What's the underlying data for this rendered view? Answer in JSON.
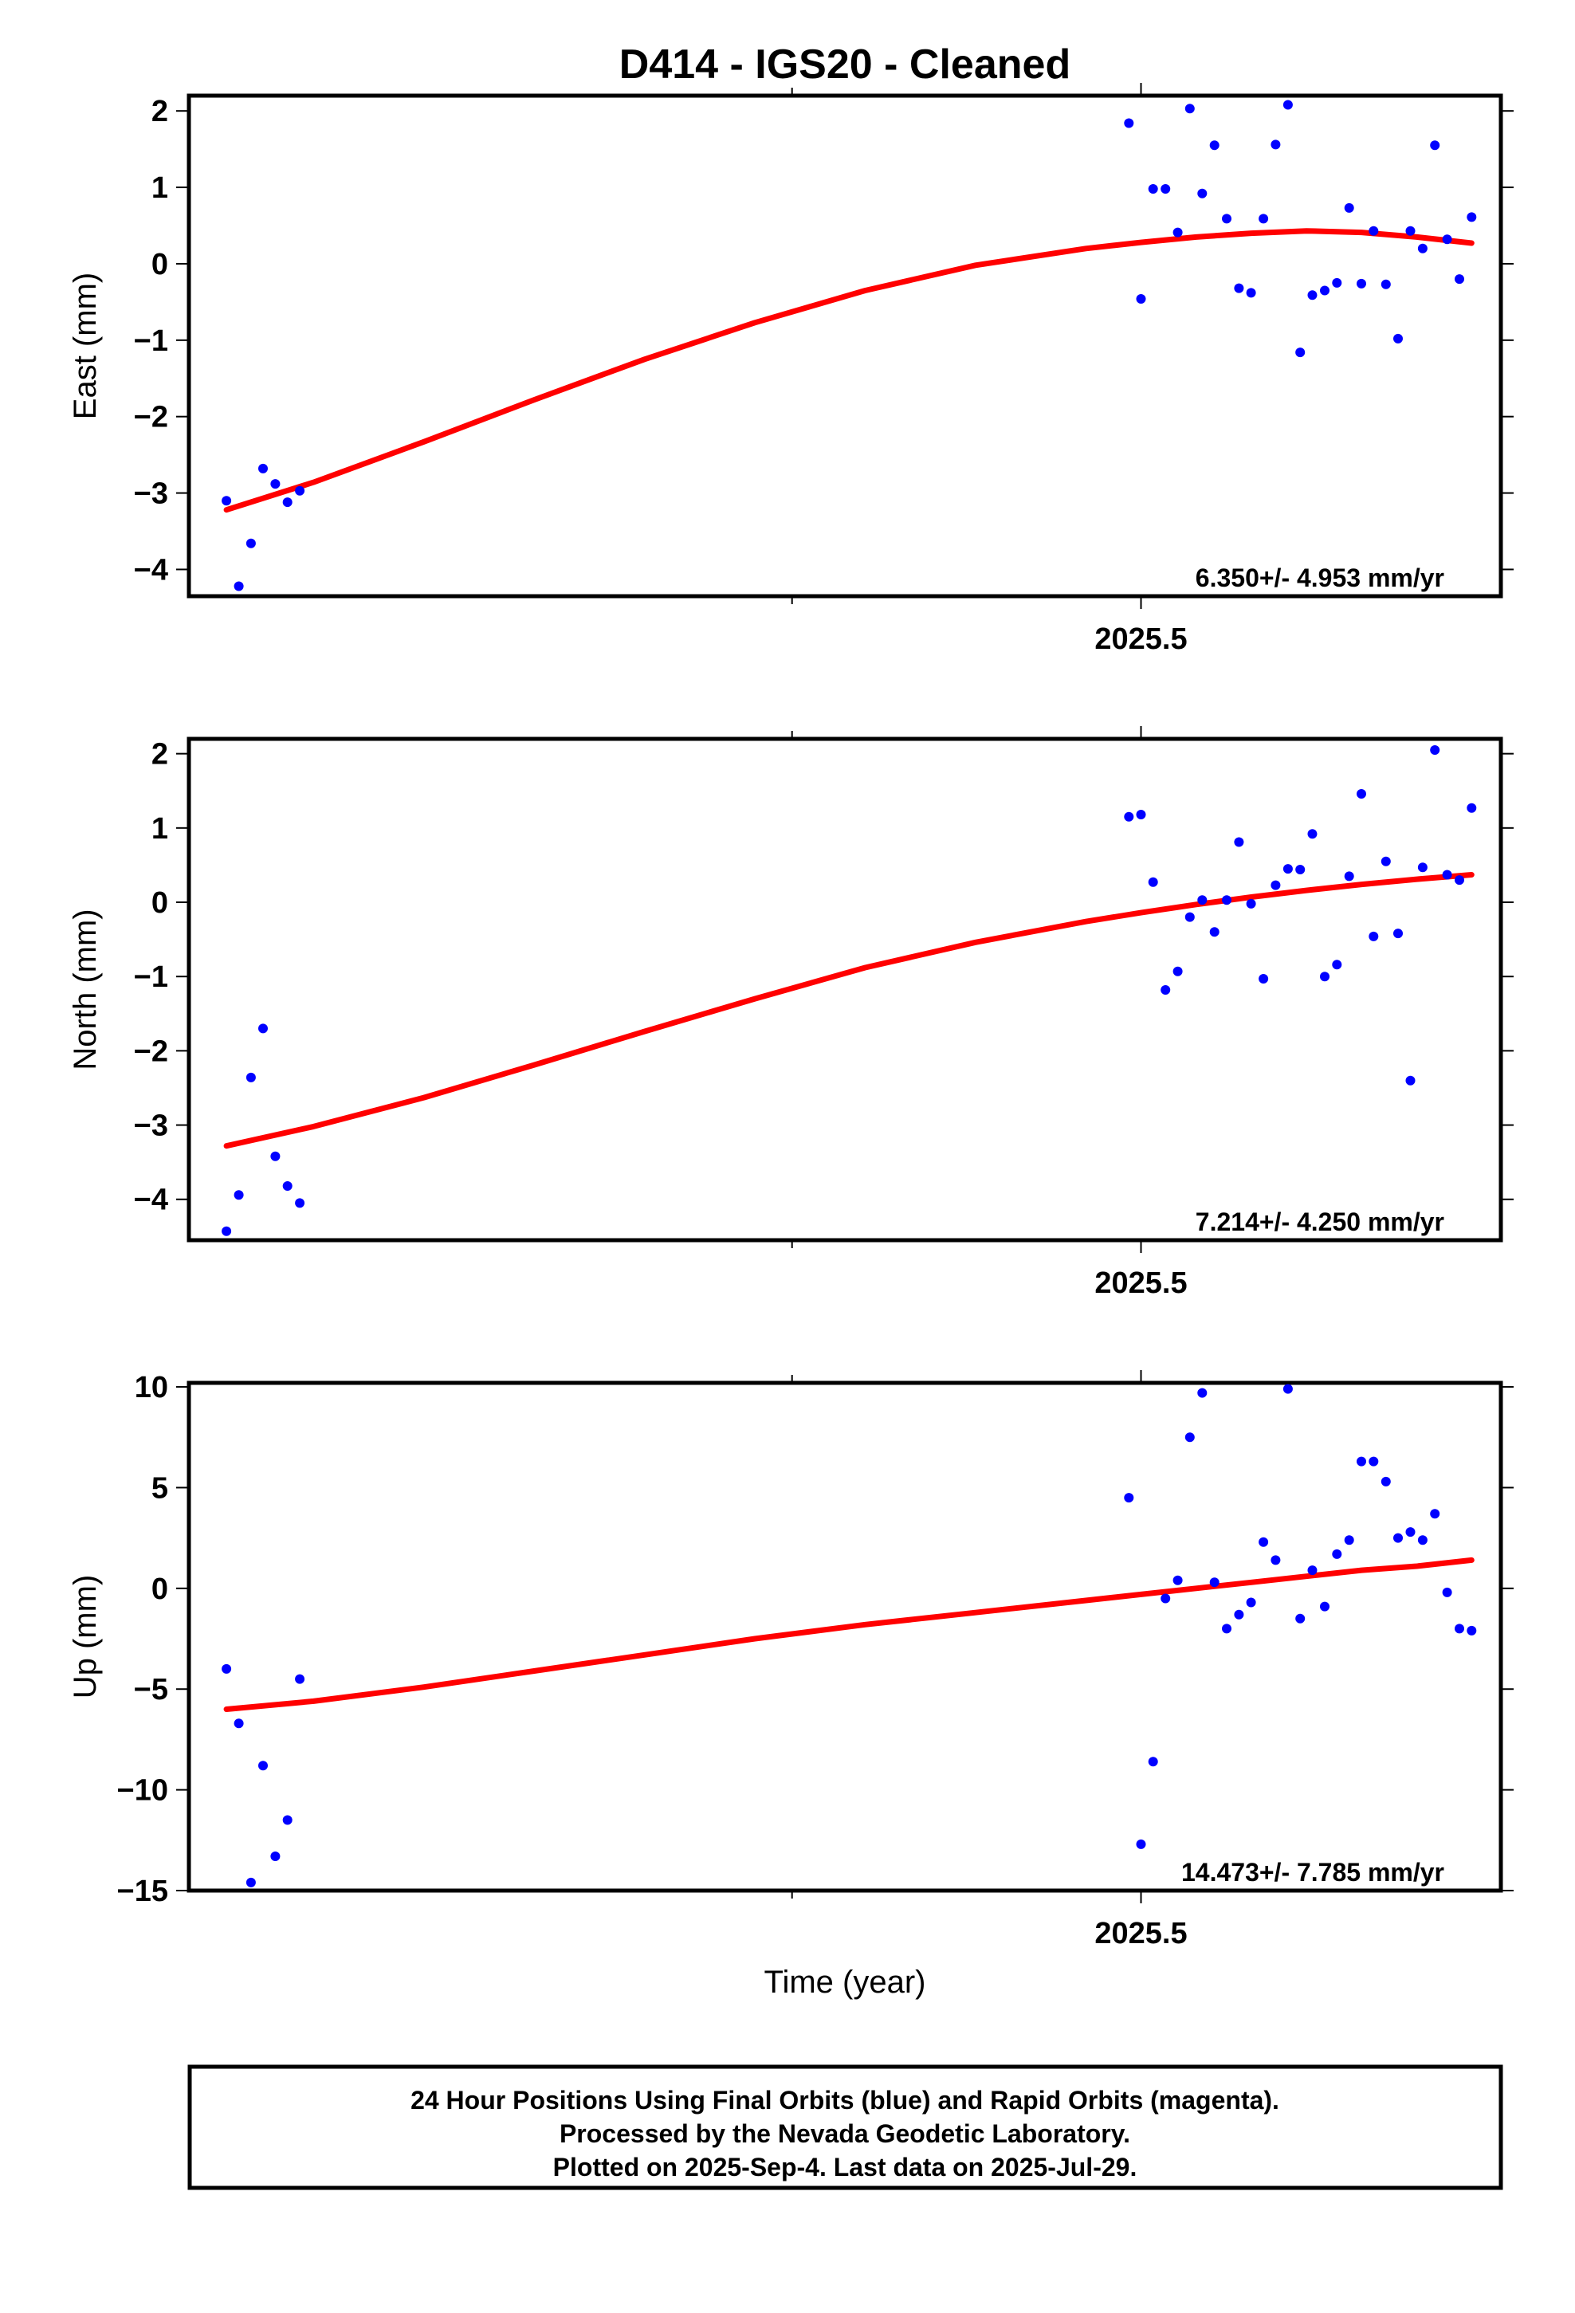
{
  "title": "D414  - IGS20 - Cleaned",
  "colors": {
    "final_orbits": "#0000ff",
    "fit_line": "#ff0000",
    "frame": "#000000"
  },
  "chart_data": [
    {
      "type": "scatter",
      "ylabel": "East (mm)",
      "x_tick_labels": [
        "2025.5"
      ],
      "x_tick_values": [
        2025.5
      ],
      "ylim": [
        -4.35,
        2.2
      ],
      "y_ticks": [
        2,
        1,
        0,
        -1,
        -2,
        -3,
        -4
      ],
      "rate_label": "6.350+/- 4.953 mm/yr",
      "series": [
        {
          "values": [
            [
              2024.671,
              -3.1
            ],
            [
              2024.6822,
              -4.22
            ],
            [
              2024.6933,
              -3.66
            ],
            [
              2024.7042,
              -2.68
            ],
            [
              2024.7153,
              -2.88
            ],
            [
              2024.7264,
              -3.12
            ],
            [
              2024.7375,
              -2.97
            ],
            [
              2025.489,
              1.84
            ],
            [
              2025.5,
              -0.46
            ],
            [
              2025.511,
              0.98
            ],
            [
              2025.5222,
              0.98
            ],
            [
              2025.5333,
              0.41
            ],
            [
              2025.5443,
              2.03
            ],
            [
              2025.5555,
              0.92
            ],
            [
              2025.5666,
              1.55
            ],
            [
              2025.5777,
              0.59
            ],
            [
              2025.5888,
              -0.32
            ],
            [
              2025.5998,
              -0.38
            ],
            [
              2025.611,
              0.59
            ],
            [
              2025.622,
              1.56
            ],
            [
              2025.6332,
              2.08
            ],
            [
              2025.6443,
              -1.16
            ],
            [
              2025.6553,
              -0.41
            ],
            [
              2025.6665,
              -0.35
            ],
            [
              2025.6776,
              -0.25
            ],
            [
              2025.6887,
              0.73
            ],
            [
              2025.6998,
              -0.26
            ],
            [
              2025.7108,
              0.43
            ],
            [
              2025.722,
              -0.27
            ],
            [
              2025.733,
              -0.98
            ],
            [
              2025.7442,
              0.43
            ],
            [
              2025.7553,
              0.2
            ],
            [
              2025.7664,
              1.55
            ],
            [
              2025.7775,
              0.32
            ],
            [
              2025.7886,
              -0.2
            ],
            [
              2025.7997,
              0.61
            ]
          ]
        },
        {
          "values": [
            [
              2024.671,
              -3.22
            ],
            [
              2024.75,
              -2.86
            ],
            [
              2024.85,
              -2.33
            ],
            [
              2024.95,
              -1.78
            ],
            [
              2025.05,
              -1.25
            ],
            [
              2025.15,
              -0.77
            ],
            [
              2025.25,
              -0.35
            ],
            [
              2025.35,
              -0.02
            ],
            [
              2025.45,
              0.2
            ],
            [
              2025.5,
              0.28
            ],
            [
              2025.55,
              0.35
            ],
            [
              2025.6,
              0.4
            ],
            [
              2025.65,
              0.43
            ],
            [
              2025.7,
              0.41
            ],
            [
              2025.75,
              0.35
            ],
            [
              2025.7997,
              0.27
            ]
          ]
        }
      ]
    },
    {
      "type": "scatter",
      "ylabel": "North (mm)",
      "x_tick_labels": [
        "2025.5"
      ],
      "x_tick_values": [
        2025.5
      ],
      "ylim": [
        -4.55,
        2.2
      ],
      "y_ticks": [
        2,
        1,
        0,
        -1,
        -2,
        -3,
        -4
      ],
      "rate_label": "7.214+/- 4.250 mm/yr",
      "series": [
        {
          "values": [
            [
              2024.671,
              -4.43
            ],
            [
              2024.6822,
              -3.94
            ],
            [
              2024.6933,
              -2.36
            ],
            [
              2024.7042,
              -1.7
            ],
            [
              2024.7153,
              -3.42
            ],
            [
              2024.7264,
              -3.82
            ],
            [
              2024.7375,
              -4.05
            ],
            [
              2025.489,
              1.15
            ],
            [
              2025.5,
              1.18
            ],
            [
              2025.511,
              0.27
            ],
            [
              2025.5222,
              -1.18
            ],
            [
              2025.5333,
              -0.93
            ],
            [
              2025.5443,
              -0.2
            ],
            [
              2025.5555,
              0.03
            ],
            [
              2025.5666,
              -0.4
            ],
            [
              2025.5777,
              0.03
            ],
            [
              2025.5888,
              0.81
            ],
            [
              2025.5998,
              -0.02
            ],
            [
              2025.611,
              -1.03
            ],
            [
              2025.622,
              0.23
            ],
            [
              2025.6332,
              0.45
            ],
            [
              2025.6443,
              0.44
            ],
            [
              2025.6553,
              0.92
            ],
            [
              2025.6665,
              -1.0
            ],
            [
              2025.6776,
              -0.84
            ],
            [
              2025.6887,
              0.35
            ],
            [
              2025.6998,
              1.46
            ],
            [
              2025.7108,
              -0.46
            ],
            [
              2025.722,
              0.55
            ],
            [
              2025.733,
              -0.42
            ],
            [
              2025.7442,
              -2.4
            ],
            [
              2025.7553,
              0.47
            ],
            [
              2025.7664,
              2.05
            ],
            [
              2025.7775,
              0.37
            ],
            [
              2025.7886,
              0.3
            ],
            [
              2025.7997,
              1.27
            ]
          ]
        },
        {
          "values": [
            [
              2024.671,
              -3.28
            ],
            [
              2024.75,
              -3.02
            ],
            [
              2024.85,
              -2.63
            ],
            [
              2024.95,
              -2.19
            ],
            [
              2025.05,
              -1.74
            ],
            [
              2025.15,
              -1.3
            ],
            [
              2025.25,
              -0.88
            ],
            [
              2025.35,
              -0.54
            ],
            [
              2025.45,
              -0.26
            ],
            [
              2025.5,
              -0.14
            ],
            [
              2025.55,
              -0.03
            ],
            [
              2025.6,
              0.07
            ],
            [
              2025.65,
              0.16
            ],
            [
              2025.7,
              0.24
            ],
            [
              2025.75,
              0.31
            ],
            [
              2025.7997,
              0.37
            ]
          ]
        }
      ]
    },
    {
      "type": "scatter",
      "ylabel": "Up (mm)",
      "xlabel": "Time (year)",
      "x_tick_labels": [
        "2025.5"
      ],
      "x_tick_values": [
        2025.5
      ],
      "ylim": [
        -15,
        10.2
      ],
      "y_ticks": [
        10,
        5,
        0,
        -5,
        -10,
        -15
      ],
      "rate_label": "14.473+/- 7.785 mm/yr",
      "series": [
        {
          "values": [
            [
              2024.671,
              -4.0
            ],
            [
              2024.6822,
              -6.7
            ],
            [
              2024.6933,
              -14.6
            ],
            [
              2024.7042,
              -8.8
            ],
            [
              2024.7153,
              -13.3
            ],
            [
              2024.7264,
              -11.5
            ],
            [
              2024.7375,
              -4.5
            ],
            [
              2025.489,
              4.5
            ],
            [
              2025.5,
              -12.7
            ],
            [
              2025.511,
              -8.6
            ],
            [
              2025.5222,
              -0.5
            ],
            [
              2025.5333,
              0.4
            ],
            [
              2025.5443,
              7.5
            ],
            [
              2025.5555,
              9.7
            ],
            [
              2025.5666,
              0.3
            ],
            [
              2025.5777,
              -2.0
            ],
            [
              2025.5888,
              -1.3
            ],
            [
              2025.5998,
              -0.7
            ],
            [
              2025.611,
              2.3
            ],
            [
              2025.622,
              1.4
            ],
            [
              2025.6332,
              9.9
            ],
            [
              2025.6443,
              -1.5
            ],
            [
              2025.6553,
              0.9
            ],
            [
              2025.6665,
              -0.9
            ],
            [
              2025.6776,
              1.7
            ],
            [
              2025.6887,
              2.4
            ],
            [
              2025.6998,
              6.3
            ],
            [
              2025.7108,
              6.3
            ],
            [
              2025.722,
              5.3
            ],
            [
              2025.733,
              2.5
            ],
            [
              2025.7442,
              2.8
            ],
            [
              2025.7553,
              2.4
            ],
            [
              2025.7664,
              3.7
            ],
            [
              2025.7775,
              -0.2
            ],
            [
              2025.7886,
              -2.0
            ],
            [
              2025.7997,
              -2.1
            ]
          ]
        },
        {
          "values": [
            [
              2024.671,
              -6.0
            ],
            [
              2024.75,
              -5.6
            ],
            [
              2024.85,
              -4.9
            ],
            [
              2024.95,
              -4.1
            ],
            [
              2025.05,
              -3.3
            ],
            [
              2025.15,
              -2.5
            ],
            [
              2025.25,
              -1.8
            ],
            [
              2025.35,
              -1.2
            ],
            [
              2025.45,
              -0.6
            ],
            [
              2025.5,
              -0.3
            ],
            [
              2025.55,
              0.0
            ],
            [
              2025.6,
              0.3
            ],
            [
              2025.65,
              0.6
            ],
            [
              2025.7,
              0.9
            ],
            [
              2025.75,
              1.1
            ],
            [
              2025.7997,
              1.4
            ]
          ]
        }
      ]
    }
  ],
  "footer": {
    "line1": "24 Hour Positions Using Final Orbits (blue) and Rapid Orbits (magenta).",
    "line2": "Processed by the Nevada Geodetic Laboratory.",
    "line3": "Plotted on 2025-Sep-4. Last data on 2025-Jul-29."
  }
}
